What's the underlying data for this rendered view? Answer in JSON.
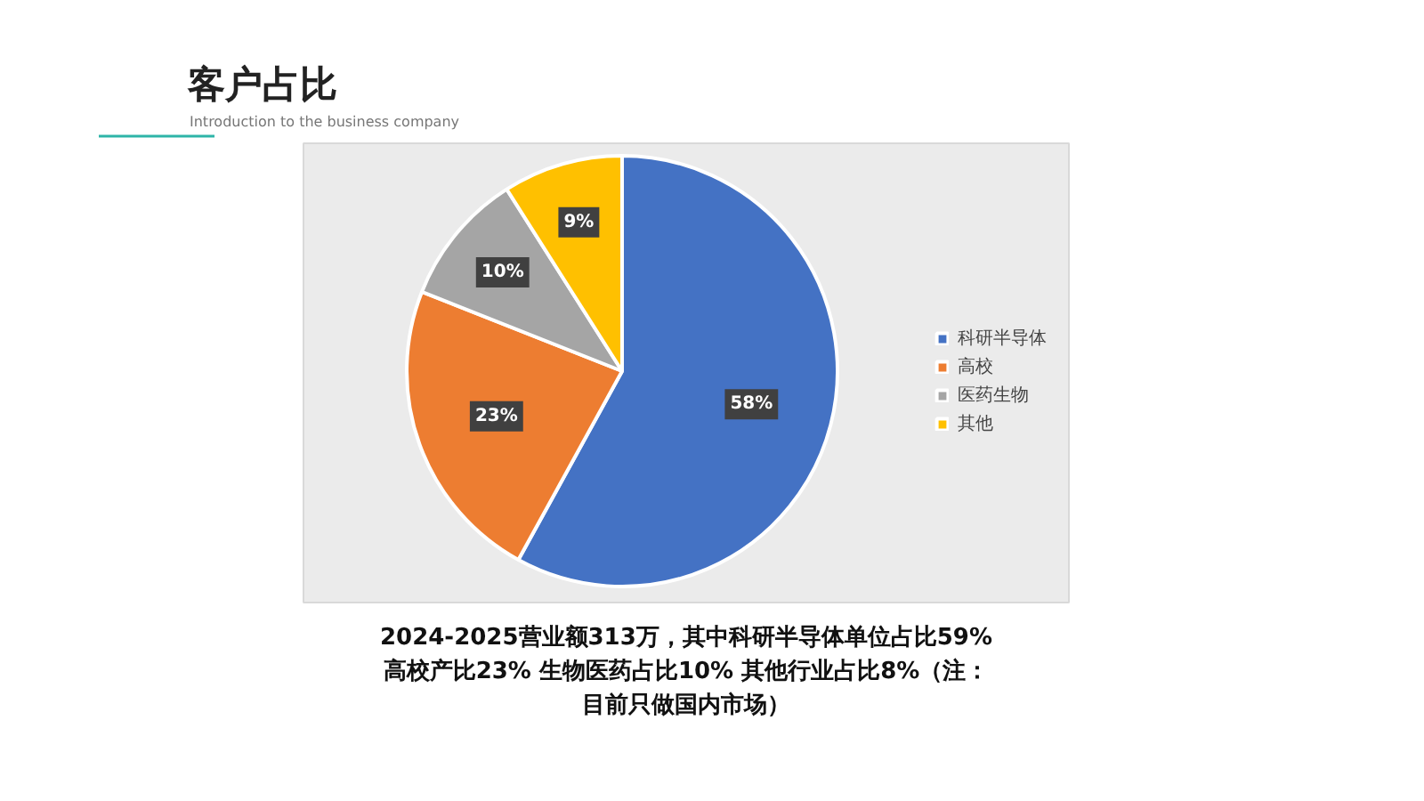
{
  "chart_data": {
    "type": "pie",
    "title": "客户占比",
    "subtitle": "Introduction to the business company",
    "categories": [
      "科研半导体",
      "高校",
      "医药生物",
      "其他"
    ],
    "values": [
      58,
      23,
      10,
      9
    ],
    "colors": [
      "#4472c4",
      "#ed7d31",
      "#a5a5a5",
      "#ffc000"
    ],
    "value_labels": [
      "58%",
      "23%",
      "10%",
      "9%"
    ],
    "legend": "right",
    "annotations": [
      "2024-2025营业额313万，其中科研半导体单位占比59%",
      "高校产比23% 生物医药占比10% 其他行业占比8%（注：",
      "目前只做国内市场）"
    ]
  }
}
